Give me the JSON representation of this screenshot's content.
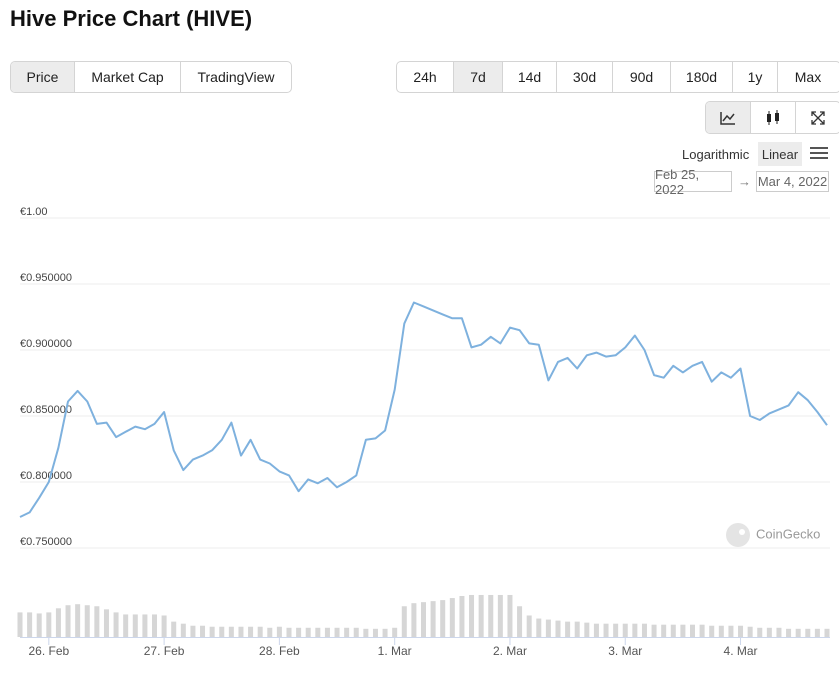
{
  "header": {
    "title": "Hive Price Chart (HIVE)"
  },
  "tabs": [
    "Price",
    "Market Cap",
    "TradingView"
  ],
  "ranges": [
    "24h",
    "7d",
    "14d",
    "30d",
    "90d",
    "180d",
    "1y",
    "Max"
  ],
  "scale": {
    "log": "Logarithmic",
    "linear": "Linear"
  },
  "date_range": {
    "from": "Feb 25, 2022",
    "arrow": "→",
    "to": "Mar 4, 2022"
  },
  "watermark": "CoinGecko",
  "chart_data": {
    "type": "line",
    "color": "#7eb1de",
    "values": [
      0.7735,
      0.777,
      0.788,
      0.8,
      0.826,
      0.861,
      0.869,
      0.861,
      0.844,
      0.845,
      0.834,
      0.838,
      0.842,
      0.84,
      0.844,
      0.853,
      0.824,
      0.809,
      0.817,
      0.82,
      0.824,
      0.832,
      0.845,
      0.82,
      0.832,
      0.817,
      0.814,
      0.808,
      0.805,
      0.793,
      0.802,
      0.799,
      0.803,
      0.796,
      0.8,
      0.805,
      0.832,
      0.833,
      0.839,
      0.87,
      0.92,
      0.936,
      0.933,
      0.93,
      0.927,
      0.924,
      0.924,
      0.902,
      0.904,
      0.91,
      0.905,
      0.917,
      0.915,
      0.905,
      0.904,
      0.877,
      0.891,
      0.894,
      0.886,
      0.896,
      0.898,
      0.895,
      0.896,
      0.902,
      0.911,
      0.9,
      0.881,
      0.879,
      0.888,
      0.883,
      0.888,
      0.891,
      0.876,
      0.883,
      0.879,
      0.886,
      0.85,
      0.847,
      0.852,
      0.855,
      0.858,
      0.868,
      0.862,
      0.853,
      0.843
    ],
    "xlim": [
      0,
      84
    ],
    "xticks": [
      {
        "value": 3,
        "label": "26. Feb"
      },
      {
        "value": 15,
        "label": "27. Feb"
      },
      {
        "value": 27,
        "label": "28. Feb"
      },
      {
        "value": 39,
        "label": "1. Mar"
      },
      {
        "value": 51,
        "label": "2. Mar"
      },
      {
        "value": 63,
        "label": "3. Mar"
      },
      {
        "value": 75,
        "label": "4. Mar"
      }
    ],
    "ylim": [
      0.75,
      1.0
    ],
    "yticks": [
      {
        "value": 1.0,
        "label": "€1.00"
      },
      {
        "value": 0.95,
        "label": "€0.950000"
      },
      {
        "value": 0.9,
        "label": "€0.900000"
      },
      {
        "value": 0.85,
        "label": "€0.850000"
      },
      {
        "value": 0.8,
        "label": "€0.800000"
      },
      {
        "value": 0.75,
        "label": "€0.750000"
      }
    ],
    "grid": true,
    "volume": {
      "color": "#d6d6d6",
      "ylim": [
        0,
        40
      ],
      "values": [
        24,
        24,
        23,
        24,
        28,
        31,
        32,
        31,
        30,
        27,
        24,
        22,
        22,
        22,
        22,
        21,
        15,
        13,
        11,
        11,
        10,
        10,
        10,
        10,
        10,
        10,
        9,
        10,
        9,
        9,
        9,
        9,
        9,
        9,
        9,
        9,
        8,
        8,
        8,
        9,
        30,
        33,
        34,
        35,
        36,
        38,
        40,
        41,
        41,
        41,
        41,
        41,
        30,
        21,
        18,
        17,
        16,
        15,
        15,
        14,
        13,
        13,
        13,
        13,
        13,
        13,
        12,
        12,
        12,
        12,
        12,
        12,
        11,
        11,
        11,
        11,
        10,
        9,
        9,
        9,
        8,
        8,
        8,
        8,
        8
      ]
    }
  }
}
